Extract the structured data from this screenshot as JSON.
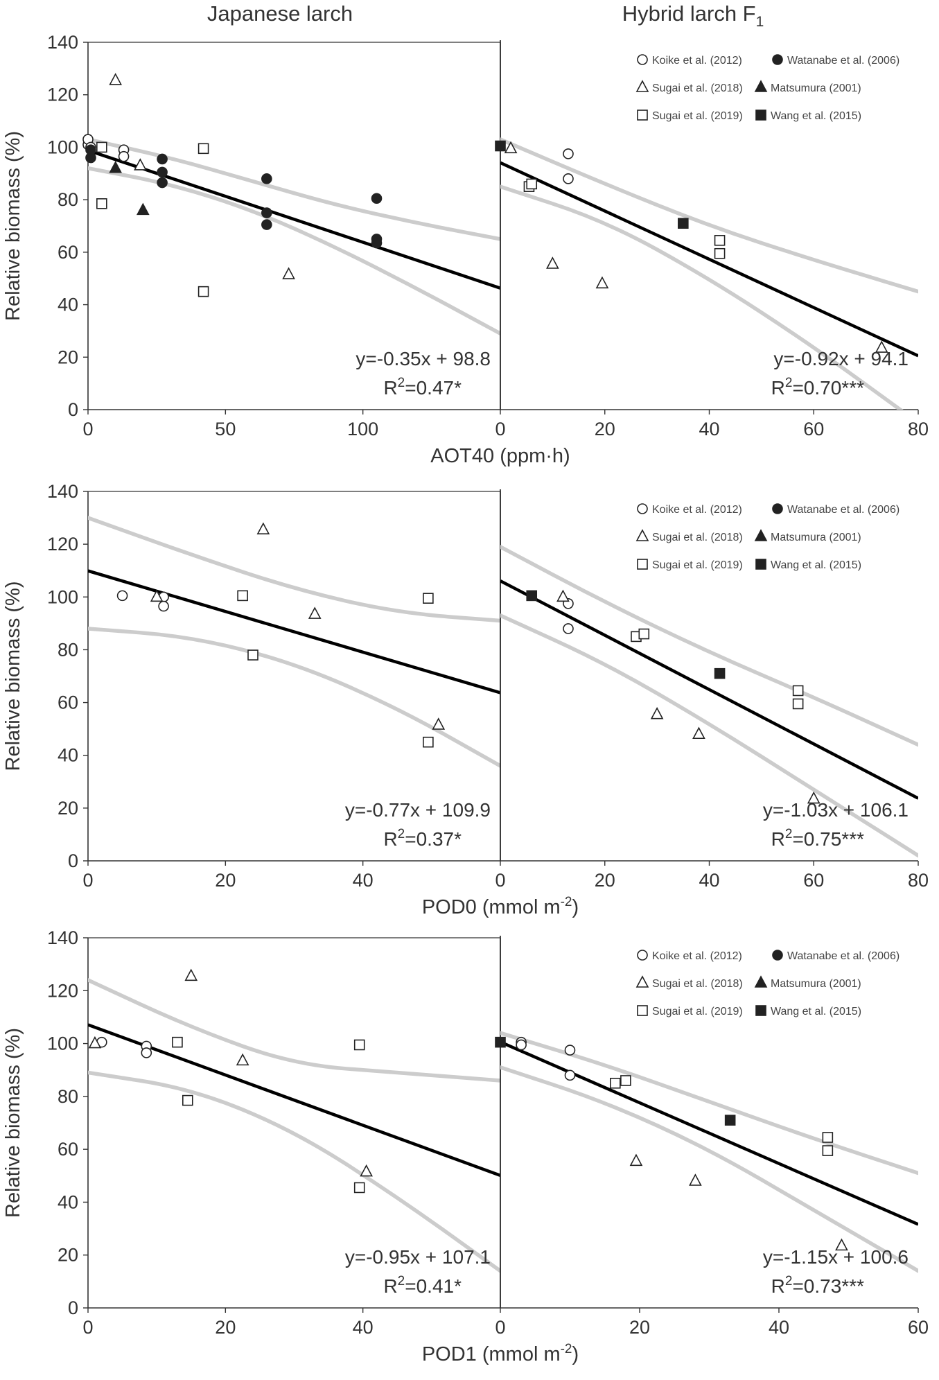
{
  "column_titles": {
    "left": "Japanese larch",
    "right_main": "Hybrid larch F",
    "right_sub": "1"
  },
  "y_axis_label": "Relative biomass (%)",
  "legend": [
    {
      "label": "Koike et al. (2012)",
      "marker": "circle",
      "filled": false
    },
    {
      "label": "Watanabe et al. (2006)",
      "marker": "circle",
      "filled": true
    },
    {
      "label": "Sugai et al. (2018)",
      "marker": "triangle",
      "filled": false
    },
    {
      "label": "Matsumura (2001)",
      "marker": "triangle",
      "filled": true
    },
    {
      "label": "Sugai et al. (2019)",
      "marker": "square",
      "filled": false
    },
    {
      "label": "Wang et al. (2015)",
      "marker": "square",
      "filled": true
    }
  ],
  "colors": {
    "line": "#000000",
    "ci": "#cccccc",
    "axis": "#333333",
    "marker": "#222222"
  },
  "chart_data": [
    {
      "type": "scatter",
      "row": 0,
      "col": 0,
      "xlabel": "AOT40 (ppm·h)",
      "xlabel_sup": "",
      "xlabel_tail": "",
      "xlim": [
        0,
        150
      ],
      "xticks": [
        0,
        50,
        100
      ],
      "ylim": [
        0,
        140
      ],
      "yticks": [
        0,
        20,
        40,
        60,
        80,
        100,
        120,
        140
      ],
      "fit": {
        "slope": -0.35,
        "intercept": 98.8
      },
      "ci_upper": [
        [
          0,
          103
        ],
        [
          30,
          96
        ],
        [
          60,
          87
        ],
        [
          90,
          78
        ],
        [
          120,
          71
        ],
        [
          150,
          65
        ]
      ],
      "ci_lower": [
        [
          0,
          92
        ],
        [
          30,
          86
        ],
        [
          60,
          76
        ],
        [
          90,
          62
        ],
        [
          120,
          46
        ],
        [
          150,
          29
        ]
      ],
      "eq_line1": "y=-0.35x + 98.8",
      "eq_r2_prefix": "R",
      "eq_r2_sup": "2",
      "eq_r2_value": "=0.47*",
      "points": [
        {
          "x": 0,
          "y": 101,
          "m": "circle",
          "f": false
        },
        {
          "x": 0,
          "y": 103,
          "m": "circle",
          "f": false
        },
        {
          "x": 1,
          "y": 100,
          "m": "circle",
          "f": false
        },
        {
          "x": 13,
          "y": 99,
          "m": "circle",
          "f": false
        },
        {
          "x": 13,
          "y": 96.5,
          "m": "circle",
          "f": false
        },
        {
          "x": 1,
          "y": 96,
          "m": "circle",
          "f": true
        },
        {
          "x": 1,
          "y": 99,
          "m": "circle",
          "f": true
        },
        {
          "x": 27,
          "y": 95.5,
          "m": "circle",
          "f": true
        },
        {
          "x": 27,
          "y": 90.5,
          "m": "circle",
          "f": true
        },
        {
          "x": 27,
          "y": 86.5,
          "m": "circle",
          "f": true
        },
        {
          "x": 65,
          "y": 88,
          "m": "circle",
          "f": true
        },
        {
          "x": 65,
          "y": 75,
          "m": "circle",
          "f": true
        },
        {
          "x": 65,
          "y": 70.5,
          "m": "circle",
          "f": true
        },
        {
          "x": 105,
          "y": 80.5,
          "m": "circle",
          "f": true
        },
        {
          "x": 105,
          "y": 65,
          "m": "circle",
          "f": true
        },
        {
          "x": 105,
          "y": 63.5,
          "m": "circle",
          "f": true
        },
        {
          "x": 10,
          "y": 125.5,
          "m": "triangle",
          "f": false
        },
        {
          "x": 19,
          "y": 93,
          "m": "triangle",
          "f": false
        },
        {
          "x": 73,
          "y": 51.5,
          "m": "triangle",
          "f": false
        },
        {
          "x": 10,
          "y": 92,
          "m": "triangle",
          "f": true
        },
        {
          "x": 20,
          "y": 76,
          "m": "triangle",
          "f": true
        },
        {
          "x": 5,
          "y": 100,
          "m": "square",
          "f": false
        },
        {
          "x": 5,
          "y": 78.5,
          "m": "square",
          "f": false
        },
        {
          "x": 42,
          "y": 99.5,
          "m": "square",
          "f": false
        },
        {
          "x": 42,
          "y": 45,
          "m": "square",
          "f": false
        }
      ]
    },
    {
      "type": "scatter",
      "row": 0,
      "col": 1,
      "xlabel": "",
      "xlabel_sup": "",
      "xlabel_tail": "",
      "xlim": [
        0,
        80
      ],
      "xticks": [
        0,
        20,
        40,
        60,
        80
      ],
      "ylim": [
        0,
        140
      ],
      "yticks": [],
      "fit": {
        "slope": -0.92,
        "intercept": 94.1
      },
      "ci_upper": [
        [
          0,
          103
        ],
        [
          20,
          86
        ],
        [
          40,
          70
        ],
        [
          60,
          57
        ],
        [
          80,
          45
        ]
      ],
      "ci_lower": [
        [
          0,
          85
        ],
        [
          20,
          72
        ],
        [
          40,
          50
        ],
        [
          60,
          24
        ],
        [
          80,
          -5
        ]
      ],
      "eq_line1": "y=-0.92x + 94.1",
      "eq_r2_prefix": "R",
      "eq_r2_sup": "2",
      "eq_r2_value": "=0.70***",
      "points": [
        {
          "x": 13,
          "y": 97.5,
          "m": "circle",
          "f": false
        },
        {
          "x": 13,
          "y": 88,
          "m": "circle",
          "f": false
        },
        {
          "x": 2,
          "y": 99.5,
          "m": "triangle",
          "f": false
        },
        {
          "x": 10,
          "y": 55.5,
          "m": "triangle",
          "f": false
        },
        {
          "x": 19.5,
          "y": 48,
          "m": "triangle",
          "f": false
        },
        {
          "x": 73,
          "y": 23.5,
          "m": "triangle",
          "f": false
        },
        {
          "x": 5.5,
          "y": 85,
          "m": "square",
          "f": false
        },
        {
          "x": 6,
          "y": 86,
          "m": "square",
          "f": false
        },
        {
          "x": 42,
          "y": 64.5,
          "m": "square",
          "f": false
        },
        {
          "x": 42,
          "y": 59.5,
          "m": "square",
          "f": false
        },
        {
          "x": 0,
          "y": 100.5,
          "m": "square",
          "f": true
        },
        {
          "x": 35,
          "y": 71,
          "m": "square",
          "f": true
        }
      ]
    },
    {
      "type": "scatter",
      "row": 1,
      "col": 0,
      "xlabel": "POD0 (mmol m",
      "xlabel_sup": "-2",
      "xlabel_tail": ")",
      "xlim": [
        0,
        60
      ],
      "xticks": [
        0,
        20,
        40
      ],
      "ylim": [
        0,
        140
      ],
      "yticks": [
        0,
        20,
        40,
        60,
        80,
        100,
        120,
        140
      ],
      "fit": {
        "slope": -0.77,
        "intercept": 109.9
      },
      "ci_upper": [
        [
          0,
          130
        ],
        [
          15,
          116
        ],
        [
          30,
          103
        ],
        [
          45,
          94
        ],
        [
          60,
          91
        ]
      ],
      "ci_lower": [
        [
          0,
          88
        ],
        [
          15,
          85
        ],
        [
          30,
          75
        ],
        [
          45,
          58
        ],
        [
          60,
          36
        ]
      ],
      "eq_line1": "y=-0.77x + 109.9",
      "eq_r2_prefix": "R",
      "eq_r2_sup": "2",
      "eq_r2_value": "=0.37*",
      "points": [
        {
          "x": 5,
          "y": 100.5,
          "m": "circle",
          "f": false
        },
        {
          "x": 11,
          "y": 100,
          "m": "circle",
          "f": false
        },
        {
          "x": 11,
          "y": 96.5,
          "m": "circle",
          "f": false
        },
        {
          "x": 10,
          "y": 100,
          "m": "triangle",
          "f": false
        },
        {
          "x": 25.5,
          "y": 125.5,
          "m": "triangle",
          "f": false
        },
        {
          "x": 33,
          "y": 93.5,
          "m": "triangle",
          "f": false
        },
        {
          "x": 51,
          "y": 51.5,
          "m": "triangle",
          "f": false
        },
        {
          "x": 22.5,
          "y": 100.5,
          "m": "square",
          "f": false
        },
        {
          "x": 24,
          "y": 78,
          "m": "square",
          "f": false
        },
        {
          "x": 49.5,
          "y": 99.5,
          "m": "square",
          "f": false
        },
        {
          "x": 49.5,
          "y": 45,
          "m": "square",
          "f": false
        }
      ]
    },
    {
      "type": "scatter",
      "row": 1,
      "col": 1,
      "xlabel": "",
      "xlabel_sup": "",
      "xlabel_tail": "",
      "xlim": [
        0,
        80
      ],
      "xticks": [
        0,
        20,
        40,
        60,
        80
      ],
      "ylim": [
        0,
        140
      ],
      "yticks": [],
      "fit": {
        "slope": -1.03,
        "intercept": 106.1
      },
      "ci_upper": [
        [
          0,
          119
        ],
        [
          20,
          98
        ],
        [
          40,
          79
        ],
        [
          60,
          62
        ],
        [
          80,
          44
        ]
      ],
      "ci_lower": [
        [
          0,
          93
        ],
        [
          20,
          75
        ],
        [
          40,
          52
        ],
        [
          60,
          27
        ],
        [
          80,
          2
        ]
      ],
      "eq_line1": "y=-1.03x + 106.1",
      "eq_r2_prefix": "R",
      "eq_r2_sup": "2",
      "eq_r2_value": "=0.75***",
      "points": [
        {
          "x": 13,
          "y": 97.5,
          "m": "circle",
          "f": false
        },
        {
          "x": 13,
          "y": 88,
          "m": "circle",
          "f": false
        },
        {
          "x": 12,
          "y": 100,
          "m": "triangle",
          "f": false
        },
        {
          "x": 30,
          "y": 55.5,
          "m": "triangle",
          "f": false
        },
        {
          "x": 38,
          "y": 48,
          "m": "triangle",
          "f": false
        },
        {
          "x": 60,
          "y": 23.5,
          "m": "triangle",
          "f": false
        },
        {
          "x": 26,
          "y": 85,
          "m": "square",
          "f": false
        },
        {
          "x": 27.5,
          "y": 86,
          "m": "square",
          "f": false
        },
        {
          "x": 57,
          "y": 64.5,
          "m": "square",
          "f": false
        },
        {
          "x": 57,
          "y": 59.5,
          "m": "square",
          "f": false
        },
        {
          "x": 6,
          "y": 100.5,
          "m": "square",
          "f": true
        },
        {
          "x": 42,
          "y": 71,
          "m": "square",
          "f": true
        }
      ]
    },
    {
      "type": "scatter",
      "row": 2,
      "col": 0,
      "xlabel": "POD1 (mmol m",
      "xlabel_sup": "-2",
      "xlabel_tail": ")",
      "xlim": [
        0,
        60
      ],
      "xticks": [
        0,
        20,
        40
      ],
      "ylim": [
        0,
        140
      ],
      "yticks": [
        0,
        20,
        40,
        60,
        80,
        100,
        120,
        140
      ],
      "fit": {
        "slope": -0.95,
        "intercept": 107.1
      },
      "ci_upper": [
        [
          0,
          124
        ],
        [
          15,
          106
        ],
        [
          30,
          92
        ],
        [
          45,
          89
        ],
        [
          60,
          86
        ]
      ],
      "ci_lower": [
        [
          0,
          89
        ],
        [
          15,
          83
        ],
        [
          30,
          67
        ],
        [
          45,
          42
        ],
        [
          60,
          14
        ]
      ],
      "eq_line1": "y=-0.95x + 107.1",
      "eq_r2_prefix": "R",
      "eq_r2_sup": "2",
      "eq_r2_value": "=0.41*",
      "points": [
        {
          "x": 2,
          "y": 100.5,
          "m": "circle",
          "f": false
        },
        {
          "x": 8.5,
          "y": 99,
          "m": "circle",
          "f": false
        },
        {
          "x": 8.5,
          "y": 96.5,
          "m": "circle",
          "f": false
        },
        {
          "x": 1,
          "y": 100,
          "m": "triangle",
          "f": false
        },
        {
          "x": 15,
          "y": 125.5,
          "m": "triangle",
          "f": false
        },
        {
          "x": 22.5,
          "y": 93.5,
          "m": "triangle",
          "f": false
        },
        {
          "x": 40.5,
          "y": 51.5,
          "m": "triangle",
          "f": false
        },
        {
          "x": 13,
          "y": 100.5,
          "m": "square",
          "f": false
        },
        {
          "x": 14.5,
          "y": 78.5,
          "m": "square",
          "f": false
        },
        {
          "x": 39.5,
          "y": 99.5,
          "m": "square",
          "f": false
        },
        {
          "x": 39.5,
          "y": 45.5,
          "m": "square",
          "f": false
        }
      ]
    },
    {
      "type": "scatter",
      "row": 2,
      "col": 1,
      "xlabel": "",
      "xlabel_sup": "",
      "xlabel_tail": "",
      "xlim": [
        0,
        60
      ],
      "xticks": [
        0,
        20,
        40,
        60
      ],
      "ylim": [
        0,
        140
      ],
      "yticks": [],
      "fit": {
        "slope": -1.15,
        "intercept": 100.6
      },
      "ci_upper": [
        [
          0,
          104
        ],
        [
          15,
          92
        ],
        [
          30,
          78
        ],
        [
          45,
          64
        ],
        [
          60,
          51
        ]
      ],
      "ci_lower": [
        [
          0,
          91
        ],
        [
          15,
          78
        ],
        [
          30,
          60
        ],
        [
          45,
          37
        ],
        [
          60,
          14
        ]
      ],
      "eq_line1": "y=-1.15x + 100.6",
      "eq_r2_prefix": "R",
      "eq_r2_sup": "2",
      "eq_r2_value": "=0.73***",
      "points": [
        {
          "x": 3,
          "y": 100.5,
          "m": "circle",
          "f": false
        },
        {
          "x": 3,
          "y": 99.5,
          "m": "circle",
          "f": false
        },
        {
          "x": 10,
          "y": 97.5,
          "m": "circle",
          "f": false
        },
        {
          "x": 10,
          "y": 88,
          "m": "circle",
          "f": false
        },
        {
          "x": 19.5,
          "y": 55.5,
          "m": "triangle",
          "f": false
        },
        {
          "x": 28,
          "y": 48,
          "m": "triangle",
          "f": false
        },
        {
          "x": 49,
          "y": 23.5,
          "m": "triangle",
          "f": false
        },
        {
          "x": 16.5,
          "y": 85,
          "m": "square",
          "f": false
        },
        {
          "x": 18,
          "y": 86,
          "m": "square",
          "f": false
        },
        {
          "x": 47,
          "y": 64.5,
          "m": "square",
          "f": false
        },
        {
          "x": 47,
          "y": 59.5,
          "m": "square",
          "f": false
        },
        {
          "x": 0,
          "y": 100.5,
          "m": "square",
          "f": true
        },
        {
          "x": 33,
          "y": 71,
          "m": "square",
          "f": true
        }
      ]
    }
  ]
}
